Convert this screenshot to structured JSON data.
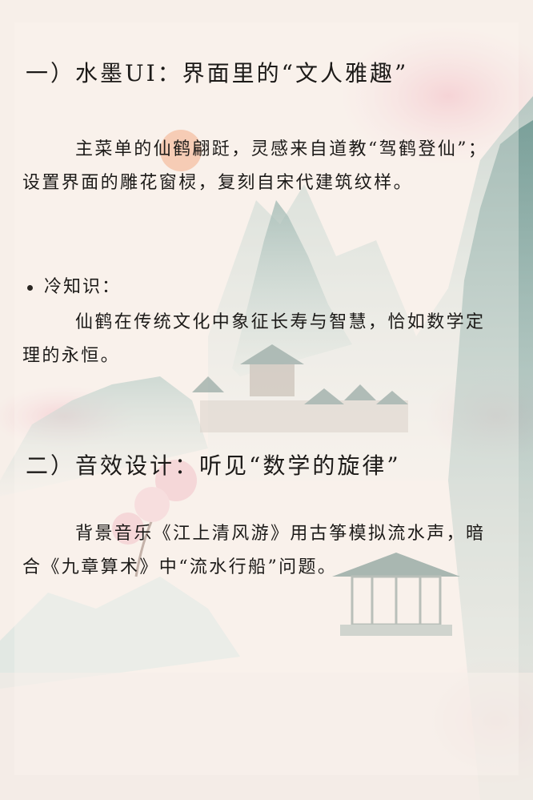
{
  "sections": [
    {
      "heading": "一）水墨UI：界面里的“文人雅趣”",
      "paragraph": "主菜单的仙鹤翩跹，灵感来自道教“驾鹤登仙”；设置界面的雕花窗棂，复刻自宋代建筑纹样。",
      "note_label": "冷知识：",
      "note_text": "仙鹤在传统文化中象征长寿与智慧，恰如数学定理的永恒。"
    },
    {
      "heading": "二）音效设计：听见“数学的旋律”",
      "paragraph": "背景音乐《江上清风游》用古筝模拟流水声，暗合《九章算术》中“流水行船”问题。"
    }
  ],
  "colors": {
    "ink": "#1c1a18",
    "mountain": "#7fa6a1",
    "blossom": "#efb8c0",
    "sun": "#f2a37a",
    "paper": "#f6eee8"
  }
}
